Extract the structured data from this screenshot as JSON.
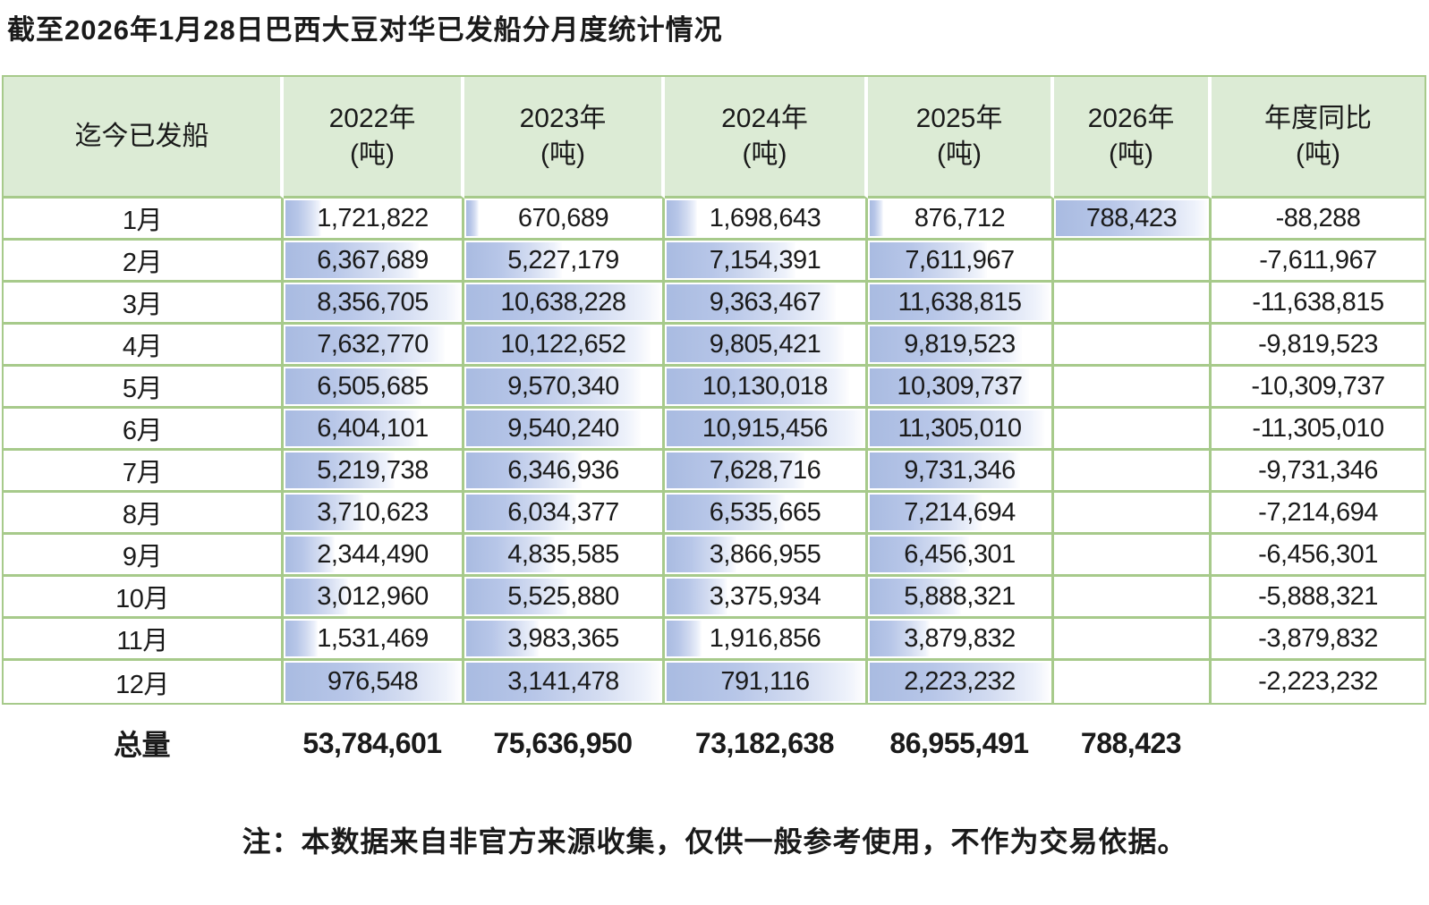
{
  "title": "截至2026年1月28日巴西大豆对华已发船分月度统计情况",
  "note": "注：本数据来自非官方来源收集，仅供一般参考使用，不作为交易依据。",
  "colors": {
    "header_green": "#dcebd5",
    "grid_green": "#a7ca8b",
    "bar_blue": "#a9bbe1",
    "text": "#1a1a1a"
  },
  "table": {
    "header": {
      "first_col": "迄今已发船",
      "unit": "(吨)",
      "year_cols": [
        "2022年",
        "2023年",
        "2024年",
        "2025年",
        "2026年"
      ],
      "yoy_col": "年度同比"
    },
    "rows": [
      {
        "month": "1月",
        "values": [
          "1,721,822",
          "670,689",
          "1,698,643",
          "876,712",
          "788,423"
        ],
        "yoy": "-88,288"
      },
      {
        "month": "2月",
        "values": [
          "6,367,689",
          "5,227,179",
          "7,154,391",
          "7,611,967",
          ""
        ],
        "yoy": "-7,611,967"
      },
      {
        "month": "3月",
        "values": [
          "8,356,705",
          "10,638,228",
          "9,363,467",
          "11,638,815",
          ""
        ],
        "yoy": "-11,638,815"
      },
      {
        "month": "4月",
        "values": [
          "7,632,770",
          "10,122,652",
          "9,805,421",
          "9,819,523",
          ""
        ],
        "yoy": "-9,819,523"
      },
      {
        "month": "5月",
        "values": [
          "6,505,685",
          "9,570,340",
          "10,130,018",
          "10,309,737",
          ""
        ],
        "yoy": "-10,309,737"
      },
      {
        "month": "6月",
        "values": [
          "6,404,101",
          "9,540,240",
          "10,915,456",
          "11,305,010",
          ""
        ],
        "yoy": "-11,305,010"
      },
      {
        "month": "7月",
        "values": [
          "5,219,738",
          "6,346,936",
          "7,628,716",
          "9,731,346",
          ""
        ],
        "yoy": "-9,731,346"
      },
      {
        "month": "8月",
        "values": [
          "3,710,623",
          "6,034,377",
          "6,535,665",
          "7,214,694",
          ""
        ],
        "yoy": "-7,214,694"
      },
      {
        "month": "9月",
        "values": [
          "2,344,490",
          "4,835,585",
          "3,866,955",
          "6,456,301",
          ""
        ],
        "yoy": "-6,456,301"
      },
      {
        "month": "10月",
        "values": [
          "3,012,960",
          "5,525,880",
          "3,375,934",
          "5,888,321",
          ""
        ],
        "yoy": "-5,888,321"
      },
      {
        "month": "11月",
        "values": [
          "1,531,469",
          "3,983,365",
          "1,916,856",
          "3,879,832",
          ""
        ],
        "yoy": "-3,879,832"
      },
      {
        "month": "12月",
        "values": [
          "976,548",
          "3,141,478",
          "791,116",
          "2,223,232",
          ""
        ],
        "yoy": "-2,223,232"
      }
    ],
    "total": {
      "label": "总量",
      "values": [
        "53,784,601",
        "75,636,950",
        "73,182,638",
        "86,955,491",
        "788,423"
      ],
      "yoy": ""
    },
    "presentation": {
      "full_bar_month": "12月"
    }
  },
  "chart_data": {
    "type": "table",
    "title": "截至2026年1月28日巴西大豆对华已发船分月度统计情况",
    "categories": [
      "1月",
      "2月",
      "3月",
      "4月",
      "5月",
      "6月",
      "7月",
      "8月",
      "9月",
      "10月",
      "11月",
      "12月"
    ],
    "series": [
      {
        "name": "2022年(吨)",
        "values": [
          1721822,
          6367689,
          8356705,
          7632770,
          6505685,
          6404101,
          5219738,
          3710623,
          2344490,
          3012960,
          1531469,
          976548
        ]
      },
      {
        "name": "2023年(吨)",
        "values": [
          670689,
          5227179,
          10638228,
          10122652,
          9570340,
          9540240,
          6346936,
          6034377,
          4835585,
          5525880,
          3983365,
          3141478
        ]
      },
      {
        "name": "2024年(吨)",
        "values": [
          1698643,
          7154391,
          9363467,
          9805421,
          10130018,
          10915456,
          7628716,
          6535665,
          3866955,
          3375934,
          1916856,
          791116
        ]
      },
      {
        "name": "2025年(吨)",
        "values": [
          876712,
          7611967,
          11638815,
          9819523,
          10309737,
          11305010,
          9731346,
          7214694,
          6456301,
          5888321,
          3879832,
          2223232
        ]
      },
      {
        "name": "2026年(吨)",
        "values": [
          788423,
          null,
          null,
          null,
          null,
          null,
          null,
          null,
          null,
          null,
          null,
          null
        ]
      },
      {
        "name": "年度同比(吨)",
        "values": [
          -88288,
          -7611967,
          -11638815,
          -9819523,
          -10309737,
          -11305010,
          -9731346,
          -7214694,
          -6456301,
          -5888321,
          -3879832,
          -2223232
        ]
      }
    ],
    "totals": {
      "2022年": 53784601,
      "2023年": 75636950,
      "2024年": 73182638,
      "2025年": 86955491,
      "2026年": 788423
    }
  }
}
